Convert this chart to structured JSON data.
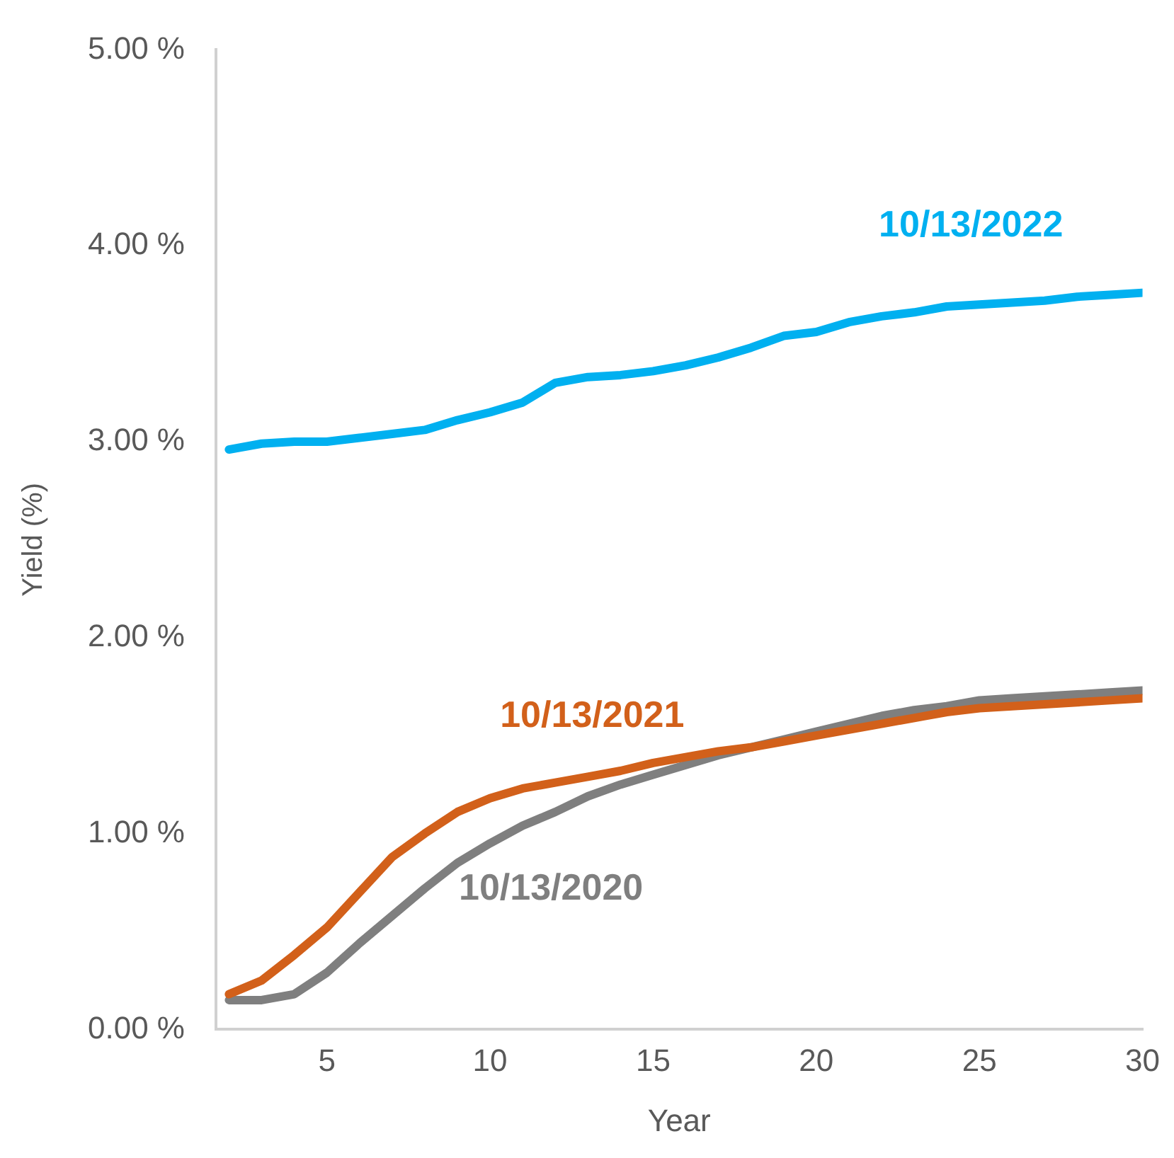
{
  "chart_data": {
    "type": "line",
    "xlabel": "Year",
    "ylabel": "Yield (%)",
    "x": [
      2,
      3,
      4,
      5,
      6,
      7,
      8,
      9,
      10,
      11,
      12,
      13,
      14,
      15,
      16,
      17,
      18,
      19,
      20,
      21,
      22,
      23,
      24,
      25,
      26,
      27,
      28,
      29,
      30
    ],
    "series": [
      {
        "name": "10/13/2022",
        "color": "#00b0f0",
        "values": [
          2.96,
          2.99,
          3.0,
          3.0,
          3.02,
          3.04,
          3.06,
          3.11,
          3.15,
          3.2,
          3.3,
          3.33,
          3.34,
          3.36,
          3.39,
          3.43,
          3.48,
          3.54,
          3.56,
          3.61,
          3.64,
          3.66,
          3.69,
          3.7,
          3.71,
          3.72,
          3.74,
          3.75,
          3.76
        ]
      },
      {
        "name": "10/13/2021",
        "color": "#d2601a",
        "values": [
          0.18,
          0.25,
          0.38,
          0.52,
          0.7,
          0.88,
          1.0,
          1.11,
          1.18,
          1.23,
          1.26,
          1.29,
          1.32,
          1.36,
          1.39,
          1.42,
          1.44,
          1.47,
          1.5,
          1.53,
          1.56,
          1.59,
          1.62,
          1.64,
          1.65,
          1.66,
          1.67,
          1.68,
          1.69
        ]
      },
      {
        "name": "10/13/2020",
        "color": "#7f7f7f",
        "values": [
          0.15,
          0.15,
          0.18,
          0.29,
          0.44,
          0.58,
          0.72,
          0.85,
          0.95,
          1.04,
          1.11,
          1.19,
          1.25,
          1.3,
          1.35,
          1.4,
          1.44,
          1.48,
          1.52,
          1.56,
          1.6,
          1.63,
          1.65,
          1.68,
          1.69,
          1.7,
          1.71,
          1.72,
          1.73
        ]
      }
    ],
    "xlim": [
      1.6,
      30
    ],
    "xticks": [
      5,
      10,
      15,
      20,
      25,
      30
    ],
    "ylim": [
      0,
      5
    ],
    "yticks": [
      {
        "value": 0,
        "label": "0.00 %"
      },
      {
        "value": 1,
        "label": "1.00 %"
      },
      {
        "value": 2,
        "label": "2.00 %"
      },
      {
        "value": 3,
        "label": "3.00 %"
      },
      {
        "value": 4,
        "label": "4.00 %"
      },
      {
        "value": 5,
        "label": "5.00 %"
      }
    ],
    "grid": false,
    "legend": false,
    "marker": "none",
    "line_style": "solid"
  }
}
